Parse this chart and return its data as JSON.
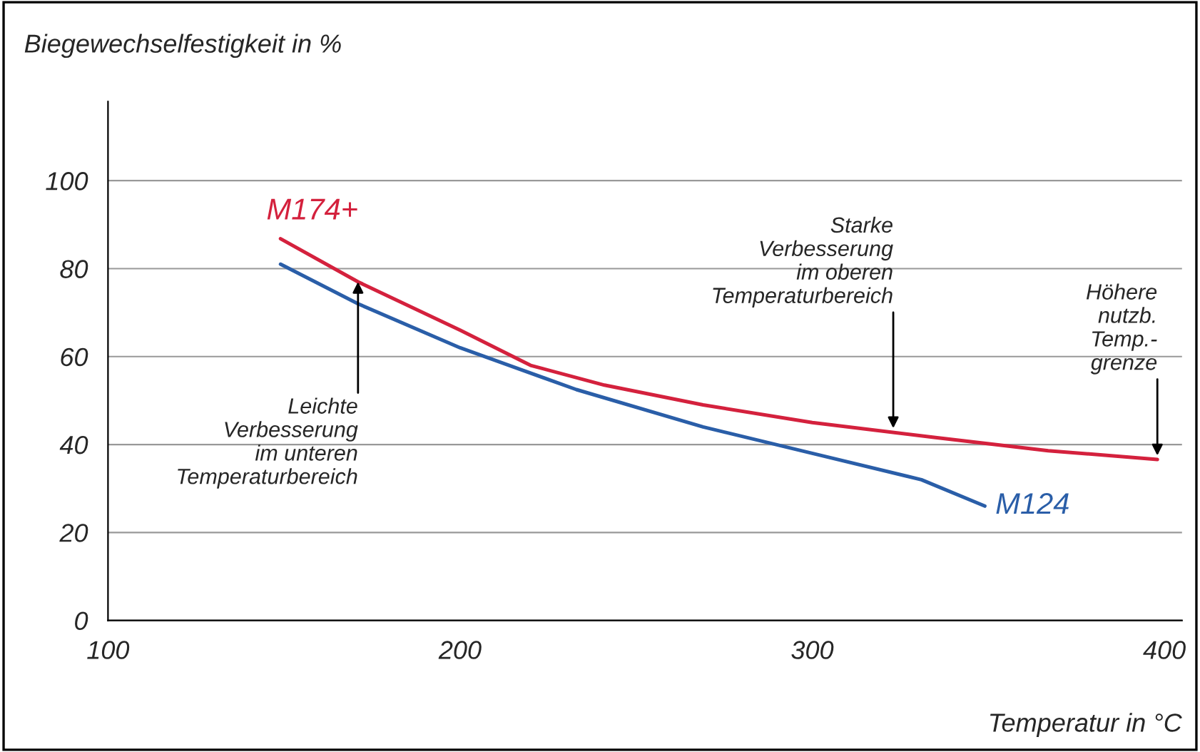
{
  "chart_data": {
    "type": "line",
    "title": "Biegewechselfestigkeit in %",
    "xlabel": "Temperatur in °C",
    "xlim": [
      100,
      405
    ],
    "ylim": [
      0,
      118
    ],
    "xticks": [
      100,
      200,
      300,
      400
    ],
    "yticks": [
      0,
      20,
      40,
      60,
      80,
      100
    ],
    "grid": "y",
    "marker": "none",
    "line_style": "solid",
    "series": [
      {
        "name": "M174+",
        "color": "#d4213d",
        "x": [
          149,
          171,
          200,
          220,
          241,
          269,
          300,
          335,
          367,
          398
        ],
        "values": [
          86.8,
          77,
          66,
          58,
          53.5,
          49,
          45,
          41.6,
          38.6,
          36.6
        ]
      },
      {
        "name": "M124",
        "color": "#2a5ea8",
        "x": [
          149,
          171,
          200,
          233,
          269,
          300,
          331,
          349
        ],
        "values": [
          81,
          72,
          62,
          52.5,
          44,
          38,
          32,
          26
        ]
      }
    ],
    "annotations": [
      {
        "text": "Leichte\nVerbesserung\nim unteren\nTemperaturbereich",
        "x": 171,
        "y": 77
      },
      {
        "text": "Starke\nVerbesserung\nim oberen\nTemperaturbereich",
        "x": 323,
        "y": 42.8
      },
      {
        "text": "Höhere\nnutzb.\nTemp.-\ngrenze",
        "x": 398,
        "y": 36.6
      }
    ]
  }
}
